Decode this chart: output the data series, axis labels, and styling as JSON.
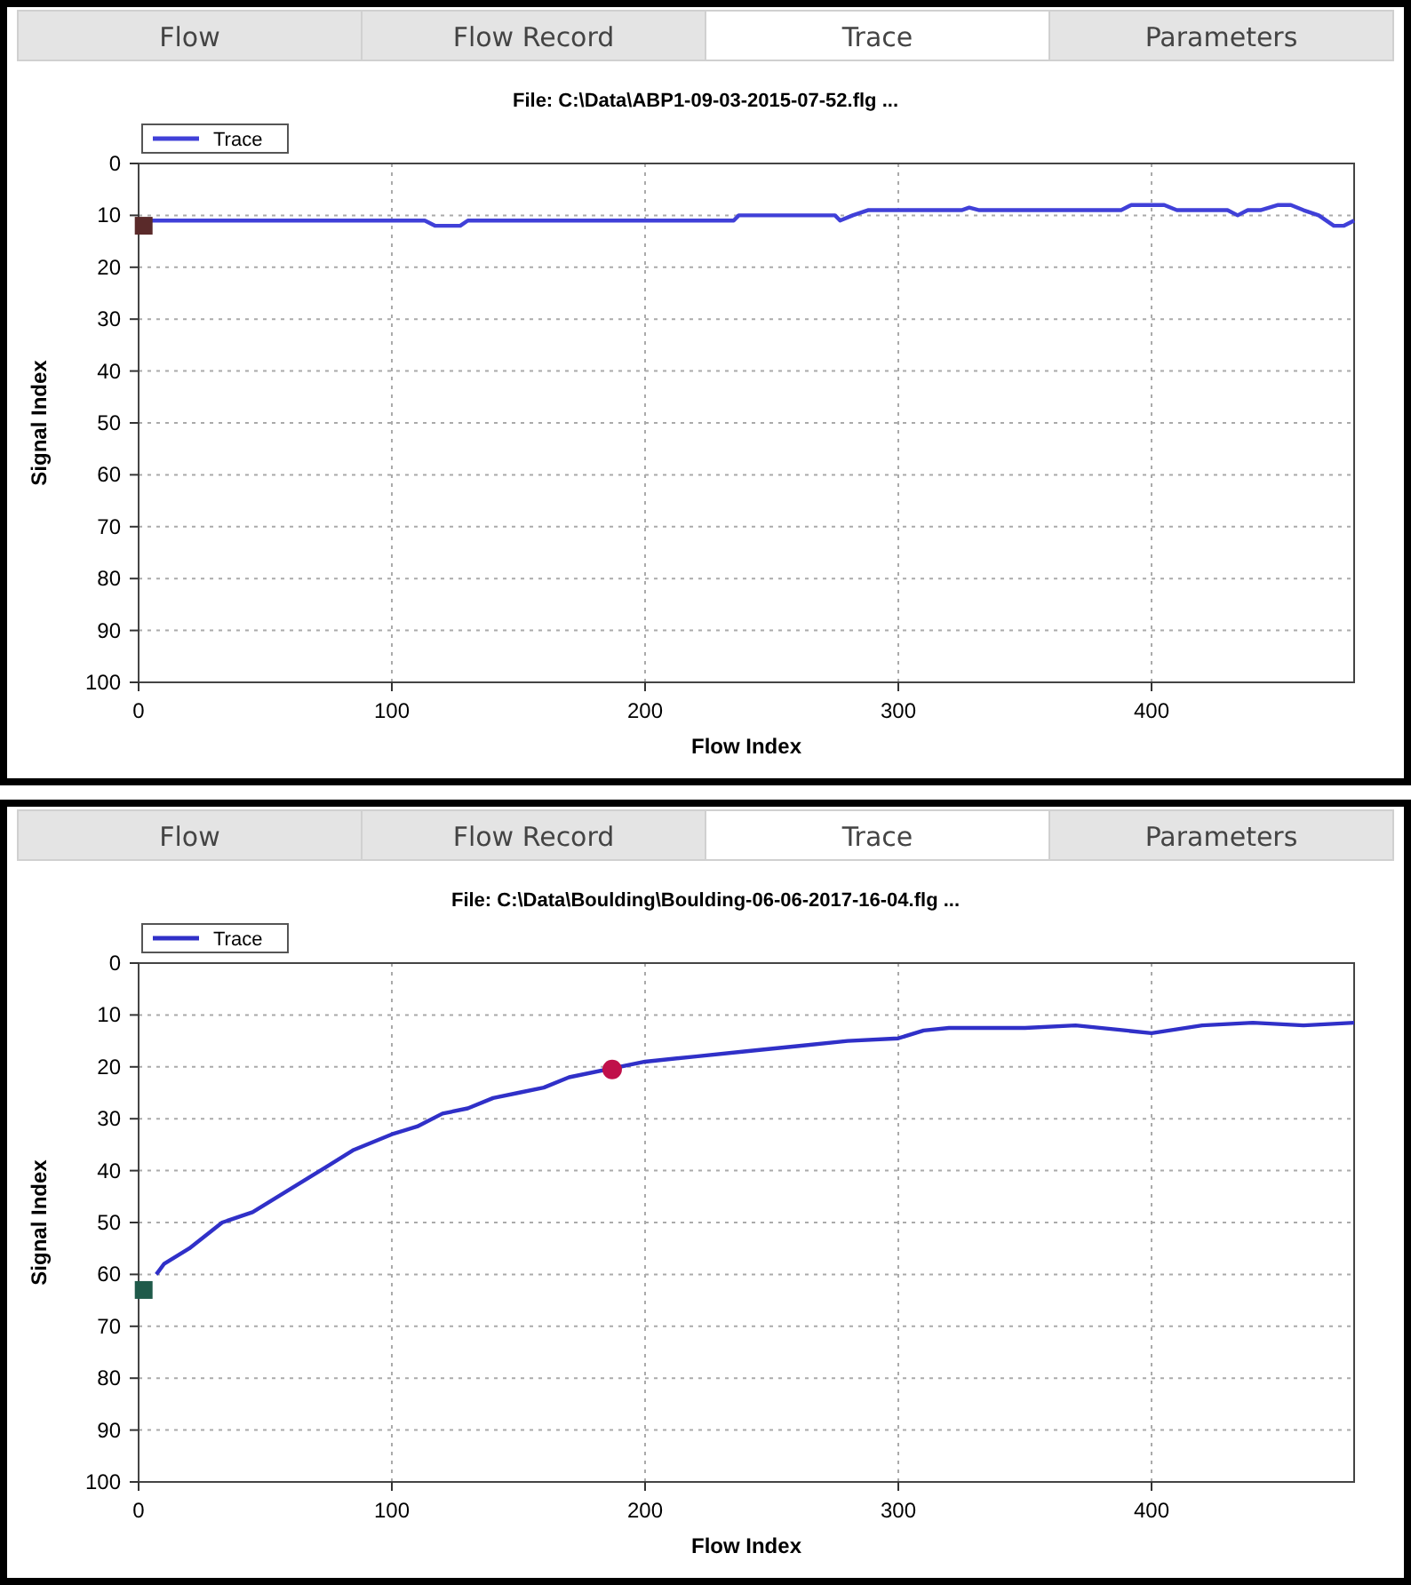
{
  "chart_data": [
    {
      "type": "line",
      "title": "File: C:\\Data\\ABP1-09-03-2015-07-52.flg ...",
      "xlabel": "Flow Index",
      "ylabel": "Signal Index",
      "annotations": [
        "Flow",
        "Flow Record",
        "Trace",
        "Parameters"
      ],
      "xlim": [
        0,
        480
      ],
      "xticks": [
        0,
        100,
        200,
        300,
        400
      ],
      "ylim": [
        100,
        0
      ],
      "yticks": [
        0,
        10,
        20,
        30,
        40,
        50,
        60,
        70,
        80,
        90,
        100
      ],
      "grid": true,
      "legend": "top left",
      "line_style": "solid",
      "series": [
        {
          "name": "Trace",
          "color": "#4040d8",
          "x": [
            0,
            113,
            117,
            127,
            130,
            235,
            237,
            275,
            277,
            282,
            288,
            325,
            328,
            332,
            388,
            392,
            405,
            410,
            430,
            434,
            438,
            443,
            450,
            455,
            460,
            466,
            472,
            476,
            480
          ],
          "values": [
            11,
            11,
            12,
            12,
            11,
            11,
            10,
            10,
            11,
            10,
            9,
            9,
            8.5,
            9,
            9,
            8,
            8,
            9,
            9,
            10,
            9,
            9,
            8,
            8,
            9,
            10,
            12,
            12,
            11
          ]
        },
        {
          "type": "scatter",
          "marker": "square",
          "color": "#5a2a2a",
          "x": [
            2
          ],
          "values": [
            12
          ]
        }
      ]
    },
    {
      "type": "line",
      "title": "File: C:\\Data\\Boulding\\Boulding-06-06-2017-16-04.flg ...",
      "xlabel": "Flow Index",
      "ylabel": "Signal Index",
      "annotations": [
        "Flow",
        "Flow Record",
        "Trace",
        "Parameters"
      ],
      "xlim": [
        0,
        480
      ],
      "xticks": [
        0,
        100,
        200,
        300,
        400
      ],
      "ylim": [
        100,
        0
      ],
      "yticks": [
        0,
        10,
        20,
        30,
        40,
        50,
        60,
        70,
        80,
        90,
        100
      ],
      "grid": true,
      "legend": "top left",
      "line_style": "solid",
      "series": [
        {
          "name": "Trace",
          "color": "#3030c8",
          "x": [
            7,
            10,
            20,
            33,
            45,
            55,
            65,
            75,
            85,
            100,
            110,
            120,
            130,
            140,
            150,
            160,
            170,
            200,
            220,
            240,
            260,
            280,
            300,
            310,
            320,
            350,
            370,
            390,
            400,
            420,
            440,
            460,
            480
          ],
          "values": [
            60,
            58,
            55,
            50,
            48,
            45,
            42,
            39,
            36,
            33,
            31.5,
            29,
            28,
            26,
            25,
            24,
            22,
            19,
            18,
            17,
            16,
            15,
            14.5,
            13,
            12.5,
            12.5,
            12,
            13,
            13.5,
            12,
            11.5,
            12,
            11.5
          ]
        },
        {
          "type": "scatter",
          "marker": "square",
          "color": "#1f5a4a",
          "x": [
            2
          ],
          "values": [
            63
          ]
        },
        {
          "type": "scatter",
          "marker": "circle",
          "color": "#c0104a",
          "x": [
            187
          ],
          "values": [
            20.5
          ]
        }
      ]
    }
  ]
}
